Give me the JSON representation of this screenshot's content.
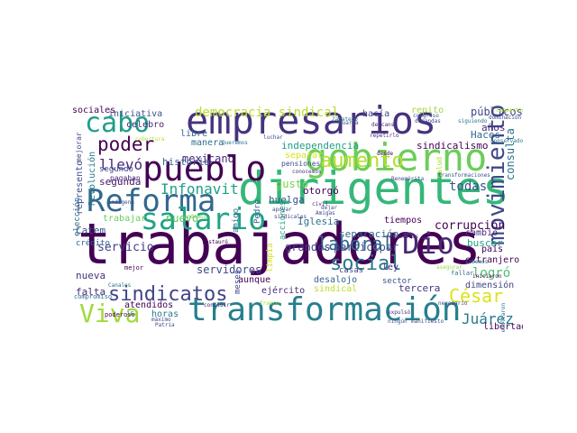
{
  "words": [
    {
      "text": "trabajadores",
      "color": "#440154"
    },
    {
      "text": "dirigentes",
      "color": "#35b779"
    },
    {
      "text": "empresarios",
      "color": "#46327e"
    },
    {
      "text": "gobierno",
      "color": "#6ccd5a"
    },
    {
      "text": "transformación",
      "color": "#277f8e"
    },
    {
      "text": "Reforma",
      "color": "#31688e"
    },
    {
      "text": "pueblo",
      "color": "#440154"
    },
    {
      "text": "salario",
      "color": "#20a486"
    },
    {
      "text": "cabo",
      "color": "#1f9e89"
    },
    {
      "text": "movimiento",
      "color": "#3e4989"
    },
    {
      "text": "Dio",
      "color": "#482878"
    },
    {
      "text": "Viva",
      "color": "#9fda3a"
    },
    {
      "text": "sindicatos",
      "color": "#414487"
    },
    {
      "text": "social",
      "color": "#2a788e"
    },
    {
      "text": "aumento",
      "color": "#b5de2b"
    },
    {
      "text": "laboral",
      "color": "#31688e"
    },
    {
      "text": "César",
      "color": "#dae319"
    },
    {
      "text": "poder",
      "color": "#440154"
    },
    {
      "text": "Infonavit",
      "color": "#1fa187"
    },
    {
      "text": "democracia sindical",
      "color": "#b5de2b"
    },
    {
      "text": "Juárez",
      "color": "#2a788e"
    },
    {
      "text": "llevó",
      "color": "#472d7b"
    },
    {
      "text": "logró",
      "color": "#4ac16d"
    },
    {
      "text": "todas",
      "color": "#3b528b"
    },
    {
      "text": "servicio",
      "color": "#433e85"
    },
    {
      "text": "corrupción",
      "color": "#440154"
    },
    {
      "text": "participar",
      "color": "#3b528b"
    },
    {
      "text": "sindicalismo",
      "color": "#440154"
    },
    {
      "text": "independencia",
      "color": "#1f9e89"
    },
    {
      "text": "públicos",
      "color": "#3e4989"
    },
    {
      "text": "consulta",
      "color": "#2d708e"
    },
    {
      "text": "grandes",
      "color": "#433e85"
    },
    {
      "text": "mexicano",
      "color": "#482878"
    },
    {
      "text": "separación",
      "color": "#31688e"
    },
    {
      "text": "servidores",
      "color": "#3e4989"
    },
    {
      "text": "Iglesia",
      "color": "#2c728e"
    },
    {
      "text": "Catem",
      "color": "#3b528b"
    },
    {
      "text": "nueva",
      "color": "#46327e"
    },
    {
      "text": "falta",
      "color": "#482878"
    },
    {
      "text": "nuevo",
      "color": "#5ec962"
    },
    {
      "text": "trabajar",
      "color": "#6ccd5a"
    },
    {
      "text": "historia",
      "color": "#33638d"
    },
    {
      "text": "segunda",
      "color": "#481567"
    },
    {
      "text": "gusto",
      "color": "#7ad151"
    },
    {
      "text": "huelga",
      "color": "#3b528b"
    },
    {
      "text": "otorgó",
      "color": "#440154"
    },
    {
      "text": "años",
      "color": "#472d7b"
    },
    {
      "text": "Haces",
      "color": "#31688e"
    },
    {
      "text": "dimensión",
      "color": "#414487"
    },
    {
      "text": "extranjero",
      "color": "#440154"
    },
    {
      "text": "cambio",
      "color": "#482878"
    },
    {
      "text": "buscar",
      "color": "#20a486"
    },
    {
      "text": "país",
      "color": "#440154"
    },
    {
      "text": "sindical",
      "color": "#bddf26"
    },
    {
      "text": "tercera",
      "color": "#46327e"
    },
    {
      "text": "atendidos",
      "color": "#440154"
    },
    {
      "text": "horas",
      "color": "#2a788e"
    },
    {
      "text": "meses",
      "color": "#3e4989"
    },
    {
      "text": "ejército",
      "color": "#482878"
    },
    {
      "text": "aunque",
      "color": "#440154"
    },
    {
      "text": "desalojo",
      "color": "#33638d"
    },
    {
      "text": "ley",
      "color": "#472d7b"
    },
    {
      "text": "limpia",
      "color": "#d2e21b"
    },
    {
      "text": "libertad",
      "color": "#440154"
    },
    {
      "text": "repito",
      "color": "#a0da39"
    },
    {
      "text": "hacía",
      "color": "#3e4989"
    },
    {
      "text": "iniciativa",
      "color": "#3b528b"
    },
    {
      "text": "sociales",
      "color": "#440154"
    },
    {
      "text": "celebro",
      "color": "#482878"
    },
    {
      "text": "libre",
      "color": "#31688e"
    },
    {
      "text": "manera",
      "color": "#2d708e"
    },
    {
      "text": "separar",
      "color": "#dae319"
    },
    {
      "text": "pensiones",
      "color": "#3b528b"
    },
    {
      "text": "Pedro",
      "color": "#33638d"
    },
    {
      "text": "amigo",
      "color": "#2c728e"
    },
    {
      "text": "represento",
      "color": "#3e4989"
    },
    {
      "text": "Revolución",
      "color": "#2a788e"
    },
    {
      "text": "elección",
      "color": "#31688e"
    },
    {
      "text": "mejorar",
      "color": "#414487"
    },
    {
      "text": "crédito",
      "color": "#33638d"
    },
    {
      "text": "acciones",
      "color": "#22a884"
    },
    {
      "text": "tiempos",
      "color": "#440154"
    },
    {
      "text": "sector",
      "color": "#3b528b"
    },
    {
      "text": "casas",
      "color": "#414487"
    },
    {
      "text": "segundo",
      "color": "#3e4989"
    },
    {
      "text": "pagaban",
      "color": "#482878"
    },
    {
      "text": "salud",
      "color": "#b5de2b"
    },
    {
      "text": "Benemérita",
      "color": "#3e4989"
    },
    {
      "text": "Zapateco",
      "color": "#2c728e"
    },
    {
      "text": "conocemos",
      "color": "#46327e"
    },
    {
      "text": "transformaciones",
      "color": "#3b528b"
    },
    {
      "text": "desde",
      "color": "#440154"
    },
    {
      "text": "congreso",
      "color": "#3b528b"
    },
    {
      "text": "repetirlo",
      "color": "#46327e"
    },
    {
      "text": "demandas",
      "color": "#3e4989"
    },
    {
      "text": "descanso",
      "color": "#482878"
    },
    {
      "text": "siguiendo",
      "color": "#2a788e"
    },
    {
      "text": "dominación",
      "color": "#3e4989"
    },
    {
      "text": "conservadores",
      "color": "#2a788e"
    },
    {
      "text": "compartidos",
      "color": "#b5de2b"
    },
    {
      "text": "compromiso",
      "color": "#2d708e"
    },
    {
      "text": "poderoso",
      "color": "#440154"
    },
    {
      "text": "principios",
      "color": "#440154"
    },
    {
      "text": "necesario",
      "color": "#414487"
    },
    {
      "text": "repúblicas",
      "color": "#482878"
    },
    {
      "text": "indígena",
      "color": "#3b528b"
    },
    {
      "text": "mejor",
      "color": "#440154"
    },
    {
      "text": "apoyar",
      "color": "#3e4989"
    },
    {
      "text": "dejar",
      "color": "#3e4989"
    },
    {
      "text": "civil",
      "color": "#482878"
    },
    {
      "text": "Amigas",
      "color": "#414487"
    },
    {
      "text": "podemos",
      "color": "#7ad151"
    },
    {
      "text": "restauró",
      "color": "#440154"
    },
    {
      "text": "Patria",
      "color": "#3e4989"
    },
    {
      "text": "ir",
      "color": "#2d708e"
    },
    {
      "text": "cobertura",
      "color": "#b5de2b"
    },
    {
      "text": "fallar",
      "color": "#2d708e"
    },
    {
      "text": "sabemos",
      "color": "#2c728e"
    },
    {
      "text": "iniciaron",
      "color": "#440154"
    },
    {
      "text": "ningún",
      "color": "#3b528b"
    },
    {
      "text": "manifiesto",
      "color": "#3e4989"
    },
    {
      "text": "expulsó",
      "color": "#46327e"
    },
    {
      "text": "asegurar",
      "color": "#9fda3a"
    },
    {
      "text": "resultaron",
      "color": "#2a788e"
    },
    {
      "text": "franco",
      "color": "#9fda3a"
    },
    {
      "text": "luchar",
      "color": "#3e4989"
    },
    {
      "text": "sindicales",
      "color": "#414487"
    },
    {
      "text": "Canales",
      "color": "#2d708e"
    },
    {
      "text": "Cuarta",
      "color": "#3b528b"
    },
    {
      "text": "máximo",
      "color": "#3e4989"
    },
    {
      "text": "concluir",
      "color": "#481567"
    },
    {
      "text": "Queremos",
      "color": "#2c728e"
    }
  ]
}
